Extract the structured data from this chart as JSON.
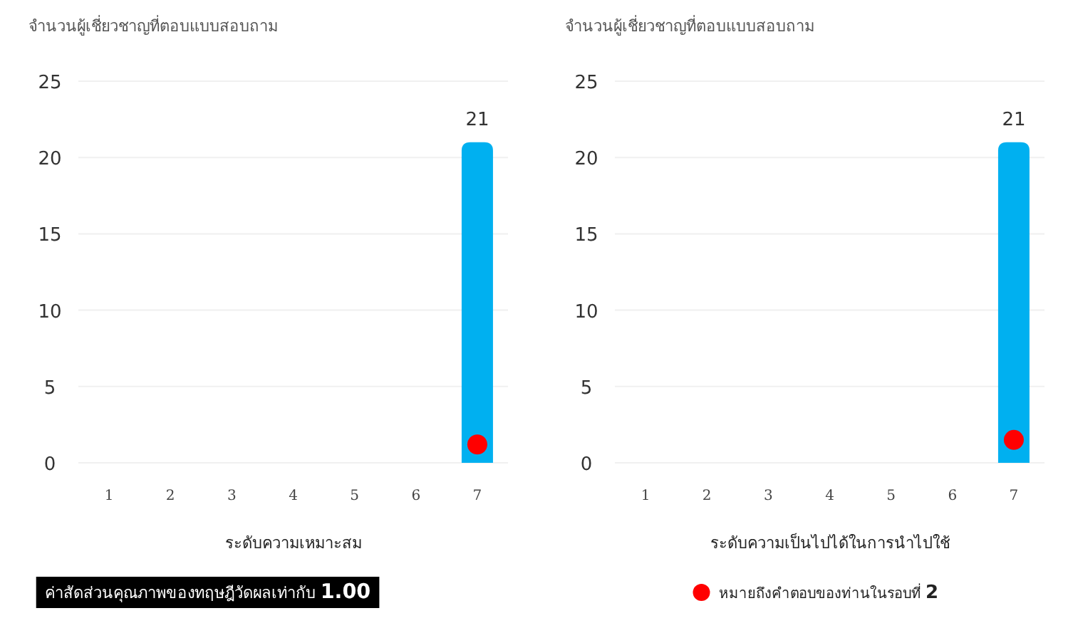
{
  "chart_data": [
    {
      "type": "bar",
      "ylabel": "จำนวนผู้เชี่ยวชาญที่ตอบแบบสอบถาม",
      "xlabel": "ระดับความเหมาะสม",
      "categories": [
        "1",
        "2",
        "3",
        "4",
        "5",
        "6",
        "7"
      ],
      "ylim": [
        0,
        25
      ],
      "yticks": [
        0,
        5,
        10,
        15,
        20,
        25
      ],
      "grid": "y",
      "series": [
        {
          "color": "#00b0f0",
          "values": [
            0,
            0,
            0,
            0,
            0,
            0,
            21
          ],
          "value_labels": [
            null,
            null,
            null,
            null,
            null,
            null,
            "21"
          ]
        },
        {
          "type": "scatter",
          "color": "#ff0000",
          "marker": "circle",
          "x": [
            "7"
          ],
          "values": [
            1.2
          ]
        }
      ],
      "annotations": [
        "ค่าสัดส่วนคุณภาพของทฤษฎีวัดผลเท่ากับ **1.00**"
      ]
    },
    {
      "type": "bar",
      "ylabel": "จำนวนผู้เชี่ยวชาญที่ตอบแบบสอบถาม",
      "xlabel": "ระดับความเป็นไปได้ในการนำไปใช้",
      "categories": [
        "1",
        "2",
        "3",
        "4",
        "5",
        "6",
        "7"
      ],
      "ylim": [
        0,
        25
      ],
      "yticks": [
        0,
        5,
        10,
        15,
        20,
        25
      ],
      "grid": "y",
      "legend": "bottom",
      "series": [
        {
          "color": "#00b0f0",
          "values": [
            0,
            0,
            0,
            0,
            0,
            0,
            21
          ],
          "value_labels": [
            null,
            null,
            null,
            null,
            null,
            null,
            "21"
          ]
        },
        {
          "type": "scatter",
          "name": "หมายถึงคำตอบของท่านในรอบที่ **2**",
          "color": "#ff0000",
          "marker": "circle",
          "x": [
            "7"
          ],
          "values": [
            1.5
          ]
        }
      ]
    }
  ]
}
